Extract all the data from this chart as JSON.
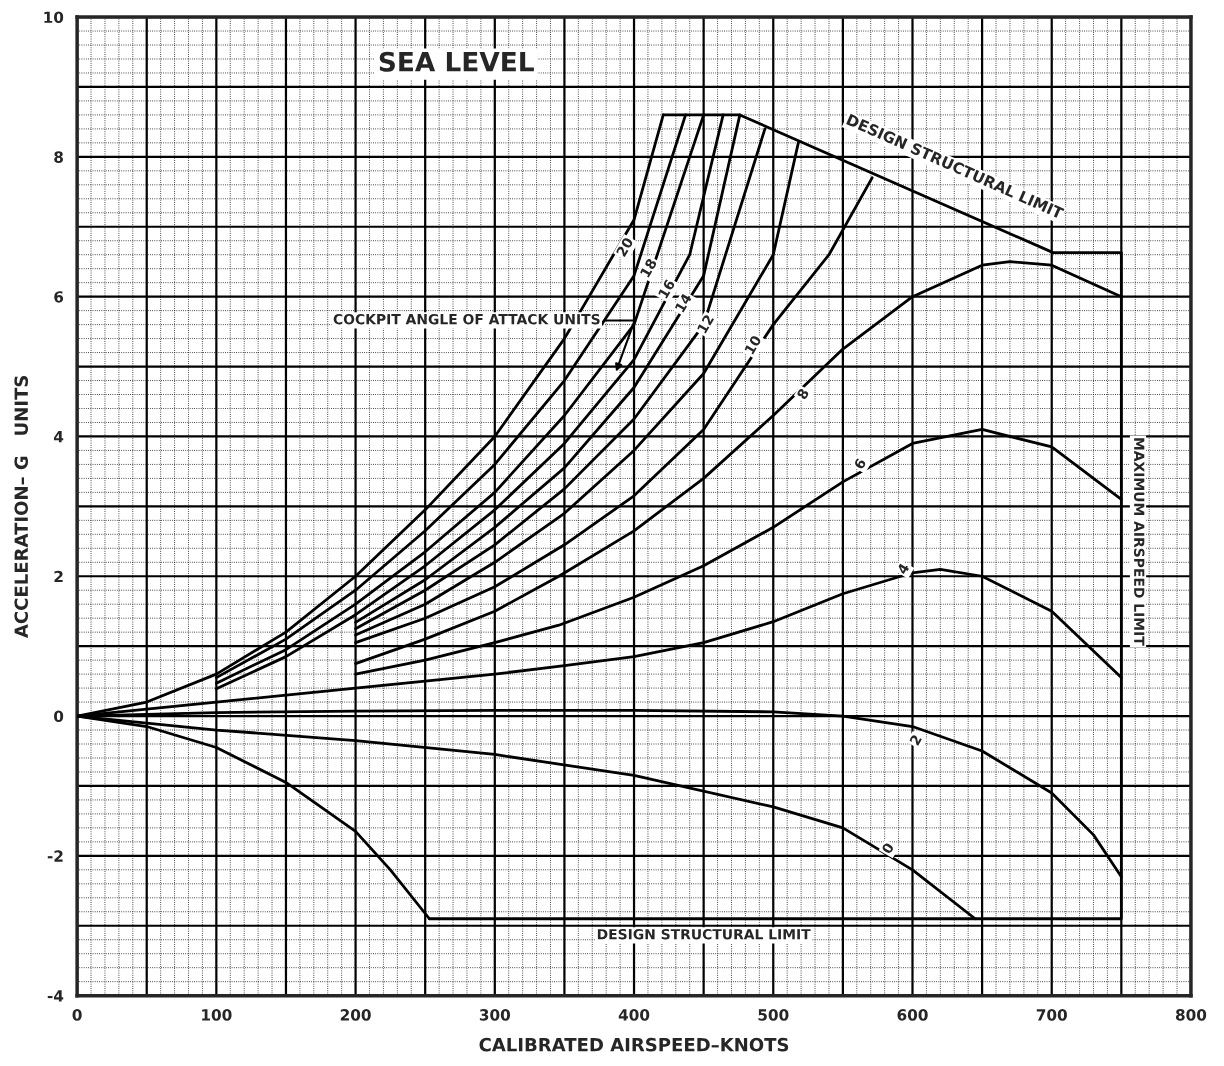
{
  "chart_data": {
    "type": "line",
    "title": "SEA LEVEL",
    "xlabel": "CALIBRATED AIRSPEED–KNOTS",
    "ylabel": "ACCELERATION– G   UNITS",
    "xlim": [
      0,
      800
    ],
    "ylim": [
      -4,
      10
    ],
    "xticks": [
      0,
      100,
      200,
      300,
      400,
      500,
      600,
      700,
      800
    ],
    "yticks": [
      -4,
      -2,
      0,
      2,
      4,
      6,
      8,
      10
    ],
    "grid": true,
    "series": [
      {
        "color": "#000000",
        "x": [
          0,
          50,
          100,
          150,
          200,
          250,
          300,
          350,
          400,
          421
        ],
        "values": [
          0,
          0.2,
          0.6,
          1.2,
          2.0,
          2.95,
          4.0,
          5.4,
          7.1,
          8.6
        ]
      },
      {
        "color": "#000000",
        "x": [
          100,
          150,
          200,
          250,
          300,
          350,
          400,
          437
        ],
        "values": [
          0.55,
          1.1,
          1.8,
          2.65,
          3.6,
          4.8,
          6.3,
          8.6
        ]
      },
      {
        "color": "#000000",
        "x": [
          100,
          150,
          200,
          250,
          300,
          350,
          400,
          450
        ],
        "values": [
          0.47,
          0.95,
          1.6,
          2.35,
          3.2,
          4.3,
          5.6,
          8.6
        ]
      },
      {
        "color": "#000000",
        "x": [
          100,
          150,
          200,
          250,
          300,
          350,
          400,
          440,
          464
        ],
        "values": [
          0.39,
          0.85,
          1.45,
          2.15,
          2.95,
          3.9,
          5.1,
          6.6,
          8.6
        ]
      },
      {
        "color": "#000000",
        "x": [
          200,
          250,
          300,
          350,
          400,
          450,
          476
        ],
        "values": [
          1.34,
          1.95,
          2.7,
          3.55,
          4.7,
          6.3,
          8.6
        ]
      },
      {
        "color": "#000000",
        "x": [
          200,
          250,
          300,
          350,
          400,
          450,
          494
        ],
        "values": [
          1.25,
          1.8,
          2.45,
          3.25,
          4.25,
          5.6,
          8.4
        ]
      },
      {
        "color": "#000000",
        "x": [
          200,
          250,
          300,
          350,
          400,
          450,
          500,
          518
        ],
        "values": [
          1.16,
          1.6,
          2.2,
          2.9,
          3.8,
          4.9,
          6.6,
          8.2
        ]
      },
      {
        "color": "#000000",
        "x": [
          200,
          250,
          300,
          350,
          400,
          450,
          500,
          540,
          571
        ],
        "values": [
          1.05,
          1.4,
          1.85,
          2.45,
          3.15,
          4.1,
          5.6,
          6.6,
          7.7
        ]
      },
      {
        "color": "#000000",
        "x": [
          200,
          250,
          300,
          346,
          400,
          450,
          500,
          550,
          600,
          650,
          670,
          700,
          750
        ],
        "values": [
          0.75,
          1.1,
          1.5,
          2.0,
          2.65,
          3.4,
          4.3,
          5.25,
          6.0,
          6.45,
          6.5,
          6.45,
          6.0
        ]
      },
      {
        "color": "#000000",
        "x": [
          200,
          250,
          300,
          346,
          400,
          450,
          500,
          550,
          600,
          650,
          700,
          750
        ],
        "values": [
          0.6,
          0.8,
          1.05,
          1.3,
          1.7,
          2.15,
          2.7,
          3.35,
          3.9,
          4.1,
          3.85,
          3.1
        ]
      },
      {
        "color": "#000000",
        "x": [
          0,
          100,
          200,
          300,
          350,
          400,
          450,
          500,
          550,
          600,
          620,
          650,
          700,
          750
        ],
        "values": [
          0,
          0.2,
          0.4,
          0.6,
          0.72,
          0.85,
          1.05,
          1.35,
          1.75,
          2.05,
          2.1,
          2.0,
          1.5,
          0.55
        ]
      },
      {
        "color": "#000000",
        "x": [
          0,
          100,
          200,
          300,
          400,
          500,
          550,
          600,
          650,
          700,
          730,
          750
        ],
        "values": [
          0,
          0.05,
          0.07,
          0.08,
          0.08,
          0.06,
          0.0,
          -0.15,
          -0.5,
          -1.1,
          -1.7,
          -2.3
        ]
      },
      {
        "color": "#000000",
        "x": [
          0,
          100,
          200,
          300,
          400,
          500,
          550,
          600,
          645
        ],
        "values": [
          0,
          -0.2,
          -0.35,
          -0.55,
          -0.85,
          -1.3,
          -1.6,
          -2.2,
          -2.9
        ]
      },
      {
        "color": "#000000",
        "x": [
          0,
          50,
          100,
          150,
          200,
          225,
          253
        ],
        "values": [
          0,
          -0.15,
          -0.45,
          -0.95,
          -1.65,
          -2.2,
          -2.9
        ]
      },
      {
        "color": "#000000",
        "x": [
          421,
          476,
          701,
          750,
          750,
          253
        ],
        "values": [
          8.6,
          8.6,
          6.63,
          6.63,
          -2.9,
          -2.9
        ]
      }
    ],
    "annotations": [
      "COCKPIT ANGLE OF ATTACK UNITS",
      {
        "text": "DESIGN STRUCTURAL LIMIT",
        "x": 590,
        "y": 7.65
      },
      {
        "text": "MAXIMUM AIRSPEED LIMIT",
        "x": 750,
        "y": 2.5
      },
      {
        "text": "DESIGN STRUCTURAL LIMIT",
        "x": 450,
        "y": -2.9
      },
      {
        "text": "20",
        "x": 394,
        "y": 6.7
      },
      {
        "text": "18",
        "x": 411,
        "y": 6.4
      },
      {
        "text": "16",
        "x": 424,
        "y": 6.1
      },
      {
        "text": "14",
        "x": 436,
        "y": 5.9
      },
      {
        "text": "12",
        "x": 452,
        "y": 5.6
      },
      {
        "text": "10",
        "x": 486,
        "y": 5.3
      },
      {
        "text": "8",
        "x": 522,
        "y": 4.6
      },
      {
        "text": "6",
        "x": 563,
        "y": 3.6
      },
      {
        "text": "4",
        "x": 594,
        "y": 2.1
      },
      {
        "text": "2",
        "x": 603,
        "y": -0.35
      },
      {
        "text": "0",
        "x": 583,
        "y": -1.9
      }
    ]
  }
}
